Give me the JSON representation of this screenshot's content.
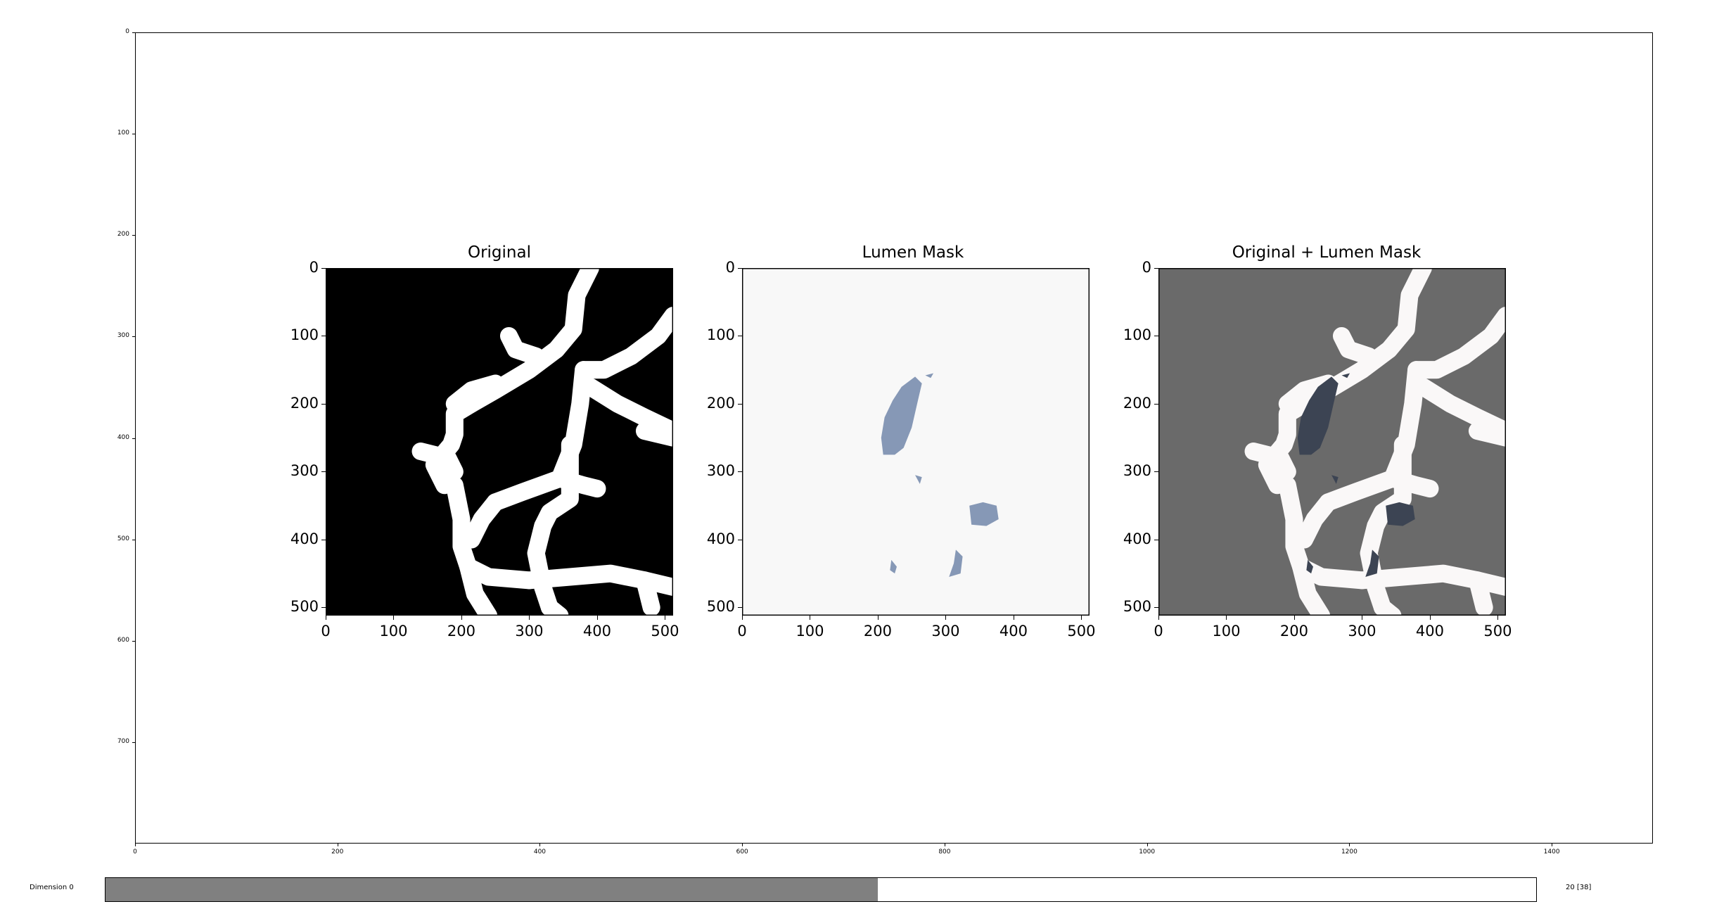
{
  "outer_axes": {
    "x_ticks": [
      "0",
      "200",
      "400",
      "600",
      "800",
      "1000",
      "1200",
      "1400"
    ],
    "x_values": [
      0,
      200,
      400,
      600,
      800,
      1000,
      1200,
      1400
    ],
    "y_ticks": [
      "0",
      "100",
      "200",
      "300",
      "400",
      "500",
      "600",
      "700"
    ],
    "y_values": [
      0,
      100,
      200,
      300,
      400,
      500,
      600,
      700
    ],
    "x_range": [
      0,
      1500
    ],
    "y_range": [
      0,
      800
    ]
  },
  "panels": [
    {
      "title": "Original",
      "background": "#000000",
      "shape_fill": "#ffffff",
      "lumen_fill": null
    },
    {
      "title": "Lumen Mask",
      "background": "#f8f8f8",
      "shape_fill": null,
      "lumen_fill": "#8698b6"
    },
    {
      "title": "Original + Lumen Mask",
      "background": "#6a6a6a",
      "shape_fill": "#faf8f8",
      "lumen_fill": "#3c4453"
    }
  ],
  "panel_ticks": {
    "x": [
      "0",
      "100",
      "200",
      "300",
      "400",
      "500"
    ],
    "y": [
      "0",
      "100",
      "200",
      "300",
      "400",
      "500"
    ],
    "values": [
      0,
      100,
      200,
      300,
      400,
      500
    ],
    "range": [
      0,
      512
    ]
  },
  "slider": {
    "label": "Dimension 0",
    "value_text": "20 [38]",
    "fraction": 0.54
  }
}
